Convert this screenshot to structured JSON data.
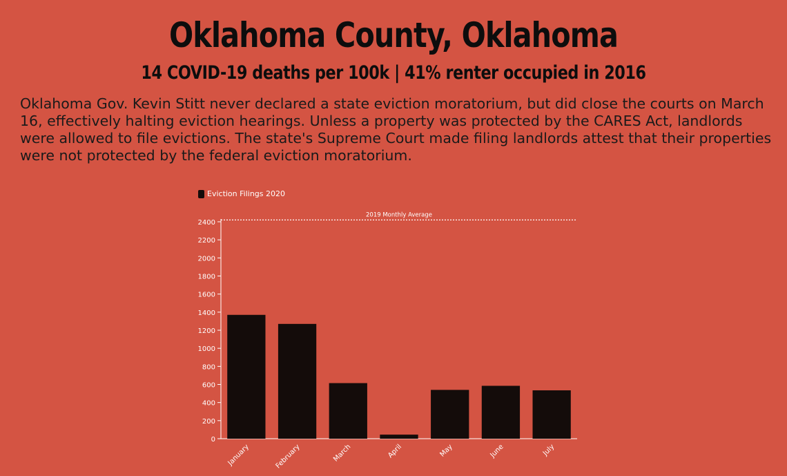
{
  "header": {
    "title": "Oklahoma County, Oklahoma",
    "subtitle": "14 COVID-19 deaths per 100k | 41% renter occupied in 2016",
    "description": "Oklahoma Gov. Kevin Stitt never declared a state eviction moratorium, but did close the courts on March 16, effectively halting eviction hearings. Unless a property was protected by the CARES Act, landlords were allowed to file evictions. The state's Supreme Court made filing landlords attest that their properties were not protected by the federal eviction moratorium."
  },
  "colors": {
    "background": "#d45443",
    "bar": "#140c0a",
    "axis": "#ffffff"
  },
  "chart_data": {
    "type": "bar",
    "categories": [
      "January",
      "February",
      "March",
      "April",
      "May",
      "June",
      "July"
    ],
    "series": [
      {
        "name": "Eviction Filings 2020",
        "values": [
          1370,
          1270,
          615,
          45,
          540,
          585,
          535
        ]
      }
    ],
    "ylim": [
      0,
      2400
    ],
    "yticks": [
      0,
      200,
      400,
      600,
      800,
      1000,
      1200,
      1400,
      1600,
      1800,
      2000,
      2200,
      2400
    ],
    "reference_line": {
      "label": "2019 Monthly Average",
      "value": 2420
    },
    "legend_placement": "top-left",
    "grid": false
  }
}
